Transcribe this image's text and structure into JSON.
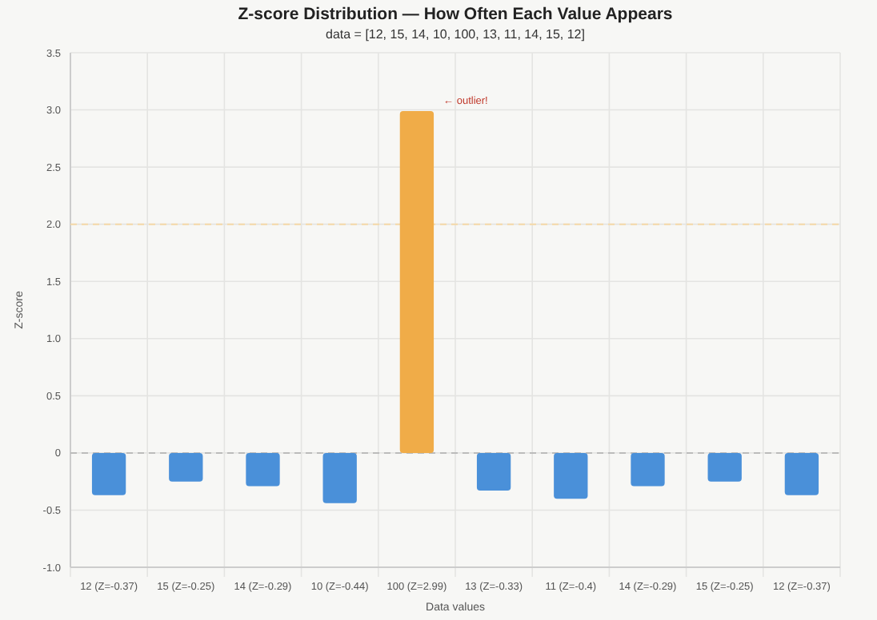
{
  "chart_data": {
    "type": "bar",
    "title": "Z-score Distribution — How Often Each Value Appears",
    "subtitle": "data = [12, 15, 14, 10, 100, 13, 11, 14, 15, 12]",
    "xlabel": "Data values",
    "ylabel": "Z-score",
    "categories": [
      "12 (Z=-0.37)",
      "15 (Z=-0.25)",
      "14 (Z=-0.29)",
      "10 (Z=-0.44)",
      "100 (Z=2.99)",
      "13 (Z=-0.33)",
      "11 (Z=-0.4)",
      "14 (Z=-0.29)",
      "15 (Z=-0.25)",
      "12 (Z=-0.37)"
    ],
    "values": [
      -0.37,
      -0.25,
      -0.29,
      -0.44,
      2.99,
      -0.33,
      -0.4,
      -0.29,
      -0.25,
      -0.37
    ],
    "colors": [
      "#4a90d9",
      "#4a90d9",
      "#4a90d9",
      "#4a90d9",
      "#f0ac48",
      "#4a90d9",
      "#4a90d9",
      "#4a90d9",
      "#4a90d9",
      "#4a90d9"
    ],
    "ylim": [
      -1.0,
      3.5
    ],
    "yticks": [
      {
        "value": -1.0,
        "label": "-1.0"
      },
      {
        "value": -0.5,
        "label": "-0.5"
      },
      {
        "value": 0,
        "label": "0"
      },
      {
        "value": 0.5,
        "label": "0.5"
      },
      {
        "value": 1.0,
        "label": "1.0"
      },
      {
        "value": 1.5,
        "label": "1.5"
      },
      {
        "value": 2.0,
        "label": "2.0"
      },
      {
        "value": 2.5,
        "label": "2.5"
      },
      {
        "value": 3.0,
        "label": "3.0"
      },
      {
        "value": 3.5,
        "label": "3.5"
      }
    ],
    "grid": true,
    "ref_lines": [
      {
        "axis": "y",
        "value": 2.0,
        "label": null,
        "color": "#f5d9a8",
        "line_style": "dashed"
      },
      {
        "axis": "y",
        "value": 0,
        "label": null,
        "color": "#bbbbbb",
        "line_style": "dashed"
      }
    ],
    "annotations": [
      {
        "text": "← outlier!",
        "x": "100 (Z=2.99)",
        "y": 2.99
      }
    ]
  }
}
